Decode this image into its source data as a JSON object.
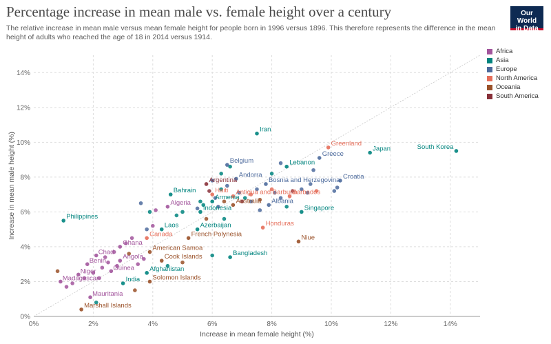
{
  "header": {
    "title": "Percentage increase in mean male vs. female height over a century",
    "subtitle": "The relative increase in mean male versus mean female height for people born in 1996 versus 1896. This therefore represents the difference in the mean height of adults who reached the age of 18 in 2014 versus 1914.",
    "logo_line1": "Our World",
    "logo_line2": "in Data",
    "logo_colors": {
      "bg": "#0e2a52",
      "accent": "#c8102e"
    }
  },
  "chart_data": {
    "type": "scatter",
    "xlabel": "Increase in mean female height (%)",
    "ylabel": "Increase in mean male height (%)",
    "xlim": [
      0,
      15
    ],
    "ylim": [
      0,
      15
    ],
    "x_ticks": [
      "0%",
      "2%",
      "4%",
      "6%",
      "8%",
      "10%",
      "12%",
      "14%"
    ],
    "y_ticks": [
      "0%",
      "2%",
      "4%",
      "6%",
      "8%",
      "10%",
      "12%",
      "14%"
    ],
    "x_tick_values": [
      0,
      2,
      4,
      6,
      8,
      10,
      12,
      14
    ],
    "y_tick_values": [
      0,
      2,
      4,
      6,
      8,
      10,
      12,
      14
    ],
    "grid": true,
    "reference_line": "y = x",
    "legend_position": "right",
    "series": [
      {
        "name": "Africa",
        "color": "#a2559c"
      },
      {
        "name": "Asia",
        "color": "#00847e"
      },
      {
        "name": "Europe",
        "color": "#4c6a9c"
      },
      {
        "name": "North America",
        "color": "#e56e5a"
      },
      {
        "name": "Oceania",
        "color": "#9a5129"
      },
      {
        "name": "South America",
        "color": "#883039"
      }
    ],
    "points": [
      {
        "label": "South Korea",
        "region": "Asia",
        "x": 14.2,
        "y": 9.5
      },
      {
        "label": "Japan",
        "region": "Asia",
        "x": 11.3,
        "y": 9.4
      },
      {
        "label": "Iran",
        "region": "Asia",
        "x": 7.5,
        "y": 10.5
      },
      {
        "label": "Greenland",
        "region": "North America",
        "x": 9.9,
        "y": 9.7
      },
      {
        "label": "Greece",
        "region": "Europe",
        "x": 9.6,
        "y": 9.1
      },
      {
        "label": "Lebanon",
        "region": "Asia",
        "x": 8.5,
        "y": 8.6
      },
      {
        "label": "Croatia",
        "region": "Europe",
        "x": 10.3,
        "y": 7.8
      },
      {
        "label": "Belgium",
        "region": "Europe",
        "x": 6.5,
        "y": 8.7
      },
      {
        "label": "Andorra",
        "region": "Europe",
        "x": 6.8,
        "y": 7.9
      },
      {
        "label": "Argentina",
        "region": "South America",
        "x": 5.8,
        "y": 7.6
      },
      {
        "label": "Bosnia and Herzegovina",
        "region": "Europe",
        "x": 7.8,
        "y": 7.6
      },
      {
        "label": "Bahrain",
        "region": "Asia",
        "x": 4.6,
        "y": 7.0
      },
      {
        "label": "Haiti",
        "region": "North America",
        "x": 6.0,
        "y": 7.0
      },
      {
        "label": "Antigua and Barbuda",
        "region": "North America",
        "x": 6.7,
        "y": 6.9
      },
      {
        "label": "Barbados",
        "region": "North America",
        "x": 8.6,
        "y": 6.9
      },
      {
        "label": "Armenia",
        "region": "Asia",
        "x": 6.0,
        "y": 6.6
      },
      {
        "label": "Australia",
        "region": "Oceania",
        "x": 6.7,
        "y": 6.4
      },
      {
        "label": "Albania",
        "region": "Europe",
        "x": 7.9,
        "y": 6.4
      },
      {
        "label": "Algeria",
        "region": "Africa",
        "x": 4.5,
        "y": 6.3
      },
      {
        "label": "Indonesia",
        "region": "Asia",
        "x": 5.6,
        "y": 6.0
      },
      {
        "label": "Singapore",
        "region": "Asia",
        "x": 9.0,
        "y": 6.0
      },
      {
        "label": "Philippines",
        "region": "Asia",
        "x": 1.0,
        "y": 5.5
      },
      {
        "label": "Laos",
        "region": "Asia",
        "x": 4.3,
        "y": 5.0
      },
      {
        "label": "Azerbaijan",
        "region": "Asia",
        "x": 5.5,
        "y": 5.0
      },
      {
        "label": "Honduras",
        "region": "North America",
        "x": 7.7,
        "y": 5.1
      },
      {
        "label": "Canada",
        "region": "North America",
        "x": 3.8,
        "y": 4.5
      },
      {
        "label": "French Polynesia",
        "region": "Oceania",
        "x": 5.2,
        "y": 4.5
      },
      {
        "label": "Niue",
        "region": "Oceania",
        "x": 8.9,
        "y": 4.3
      },
      {
        "label": "Ghana",
        "region": "Africa",
        "x": 2.9,
        "y": 4.0
      },
      {
        "label": "American Samoa",
        "region": "Oceania",
        "x": 3.9,
        "y": 3.7
      },
      {
        "label": "Chad",
        "region": "Africa",
        "x": 2.1,
        "y": 3.5
      },
      {
        "label": "Bangladesh",
        "region": "Asia",
        "x": 6.6,
        "y": 3.4
      },
      {
        "label": "Angola",
        "region": "Africa",
        "x": 2.9,
        "y": 3.2
      },
      {
        "label": "Cook Islands",
        "region": "Oceania",
        "x": 4.3,
        "y": 3.2
      },
      {
        "label": "Benin",
        "region": "Africa",
        "x": 1.8,
        "y": 3.0
      },
      {
        "label": "Guinea",
        "region": "Africa",
        "x": 2.6,
        "y": 2.6
      },
      {
        "label": "Afghanistan",
        "region": "Asia",
        "x": 3.8,
        "y": 2.5
      },
      {
        "label": "Niger",
        "region": "Africa",
        "x": 1.5,
        "y": 2.4
      },
      {
        "label": "Solomon Islands",
        "region": "Oceania",
        "x": 3.9,
        "y": 2.0
      },
      {
        "label": "India",
        "region": "Asia",
        "x": 3.0,
        "y": 1.9
      },
      {
        "label": "Madagascar",
        "region": "Africa",
        "x": 0.9,
        "y": 2.0
      },
      {
        "label": "Mauritania",
        "region": "Africa",
        "x": 1.9,
        "y": 1.1
      },
      {
        "label": "Marshall Islands",
        "region": "Oceania",
        "x": 1.6,
        "y": 0.4
      }
    ],
    "unlabeled_points": [
      {
        "region": "Europe",
        "x": 3.6,
        "y": 6.5
      },
      {
        "region": "Africa",
        "x": 4.1,
        "y": 6.1
      },
      {
        "region": "Asia",
        "x": 3.9,
        "y": 6.0
      },
      {
        "region": "Africa",
        "x": 4.0,
        "y": 5.2
      },
      {
        "region": "Europe",
        "x": 3.8,
        "y": 5.0
      },
      {
        "region": "Africa",
        "x": 3.3,
        "y": 4.5
      },
      {
        "region": "Africa",
        "x": 3.1,
        "y": 4.2
      },
      {
        "region": "Africa",
        "x": 2.7,
        "y": 3.7
      },
      {
        "region": "Africa",
        "x": 2.4,
        "y": 3.4
      },
      {
        "region": "Africa",
        "x": 2.5,
        "y": 3.1
      },
      {
        "region": "Africa",
        "x": 2.3,
        "y": 2.8
      },
      {
        "region": "Africa",
        "x": 2.0,
        "y": 2.5
      },
      {
        "region": "Africa",
        "x": 2.2,
        "y": 2.2
      },
      {
        "region": "Africa",
        "x": 1.7,
        "y": 2.2
      },
      {
        "region": "Africa",
        "x": 1.3,
        "y": 1.9
      },
      {
        "region": "Africa",
        "x": 1.1,
        "y": 1.7
      },
      {
        "region": "Oceania",
        "x": 0.8,
        "y": 2.6
      },
      {
        "region": "Africa",
        "x": 3.5,
        "y": 3.0
      },
      {
        "region": "Africa",
        "x": 3.7,
        "y": 3.3
      },
      {
        "region": "Oceania",
        "x": 3.2,
        "y": 3.6
      },
      {
        "region": "Africa",
        "x": 2.8,
        "y": 2.9
      },
      {
        "region": "Asia",
        "x": 4.5,
        "y": 2.9
      },
      {
        "region": "Oceania",
        "x": 5.0,
        "y": 3.1
      },
      {
        "region": "Asia",
        "x": 6.0,
        "y": 3.5
      },
      {
        "region": "Oceania",
        "x": 3.4,
        "y": 1.5
      },
      {
        "region": "Asia",
        "x": 2.1,
        "y": 0.8
      },
      {
        "region": "Asia",
        "x": 4.8,
        "y": 5.8
      },
      {
        "region": "Asia",
        "x": 5.0,
        "y": 6.0
      },
      {
        "region": "Europe",
        "x": 5.5,
        "y": 6.2
      },
      {
        "region": "Asia",
        "x": 5.7,
        "y": 6.4
      },
      {
        "region": "Europe",
        "x": 6.2,
        "y": 6.3
      },
      {
        "region": "Oceania",
        "x": 6.4,
        "y": 6.6
      },
      {
        "region": "Europe",
        "x": 6.1,
        "y": 6.8
      },
      {
        "region": "South America",
        "x": 5.9,
        "y": 7.2
      },
      {
        "region": "Asia",
        "x": 6.3,
        "y": 7.3
      },
      {
        "region": "Europe",
        "x": 6.5,
        "y": 7.5
      },
      {
        "region": "Europe",
        "x": 6.9,
        "y": 7.1
      },
      {
        "region": "Asia",
        "x": 7.1,
        "y": 6.8
      },
      {
        "region": "North America",
        "x": 7.3,
        "y": 7.0
      },
      {
        "region": "Europe",
        "x": 7.5,
        "y": 7.3
      },
      {
        "region": "Oceania",
        "x": 7.6,
        "y": 6.7
      },
      {
        "region": "Europe",
        "x": 7.3,
        "y": 6.6
      },
      {
        "region": "South America",
        "x": 7.0,
        "y": 6.6
      },
      {
        "region": "Europe",
        "x": 8.1,
        "y": 7.1
      },
      {
        "region": "Europe",
        "x": 8.3,
        "y": 6.8
      },
      {
        "region": "North America",
        "x": 8.0,
        "y": 7.3
      },
      {
        "region": "South America",
        "x": 8.7,
        "y": 7.2
      },
      {
        "region": "Europe",
        "x": 9.0,
        "y": 7.3
      },
      {
        "region": "Europe",
        "x": 9.3,
        "y": 7.6
      },
      {
        "region": "Europe",
        "x": 9.4,
        "y": 8.4
      },
      {
        "region": "North America",
        "x": 9.5,
        "y": 7.2
      },
      {
        "region": "Europe",
        "x": 9.2,
        "y": 7.1
      },
      {
        "region": "Asia",
        "x": 8.0,
        "y": 8.2
      },
      {
        "region": "Europe",
        "x": 8.3,
        "y": 8.8
      },
      {
        "region": "Asia",
        "x": 6.3,
        "y": 8.2
      },
      {
        "region": "Asia",
        "x": 6.6,
        "y": 8.6
      },
      {
        "region": "Europe",
        "x": 6.0,
        "y": 7.8
      },
      {
        "region": "Europe",
        "x": 10.2,
        "y": 7.4
      },
      {
        "region": "Europe",
        "x": 10.1,
        "y": 7.2
      },
      {
        "region": "Asia",
        "x": 8.5,
        "y": 6.3
      },
      {
        "region": "Europe",
        "x": 7.6,
        "y": 6.1
      },
      {
        "region": "Asia",
        "x": 6.4,
        "y": 5.6
      },
      {
        "region": "Oceania",
        "x": 5.8,
        "y": 5.6
      },
      {
        "region": "Asia",
        "x": 5.6,
        "y": 6.6
      }
    ]
  }
}
